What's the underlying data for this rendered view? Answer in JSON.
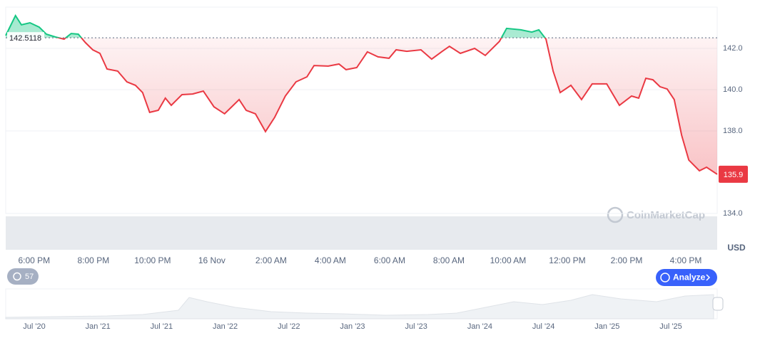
{
  "chart_data": {
    "type": "line",
    "x": [
      17.04,
      17.37,
      17.57,
      17.86,
      18.17,
      18.41,
      18.72,
      19.01,
      19.25,
      19.49,
      19.73,
      19.98,
      20.22,
      20.46,
      20.82,
      21.13,
      21.42,
      21.66,
      21.9,
      22.19,
      22.43,
      22.63,
      22.99,
      23.35,
      23.71,
      24.07,
      24.43,
      24.67,
      24.92,
      25.16,
      25.47,
      25.81,
      26.12,
      26.48,
      26.84,
      27.21,
      27.45,
      27.93,
      28.29,
      28.53,
      28.89,
      29.25,
      29.61,
      29.98,
      30.22,
      30.58,
      31.06,
      31.42,
      31.78,
      32.02,
      32.39,
      32.87,
      33.23,
      33.71,
      33.95,
      34.43,
      34.8,
      35.04,
      35.28,
      35.52,
      35.76,
      36.12,
      36.48,
      36.84,
      37.33,
      37.76,
      38.17,
      38.41,
      38.65,
      38.89,
      39.13,
      39.37,
      39.61,
      39.86,
      40.1,
      40.46,
      40.7,
      41.06
    ],
    "values": [
      142.62,
      143.59,
      143.14,
      143.24,
      143.03,
      142.69,
      142.55,
      142.45,
      142.72,
      142.69,
      142.28,
      141.93,
      141.76,
      141.0,
      140.9,
      140.38,
      140.21,
      139.86,
      138.9,
      139.0,
      139.59,
      139.24,
      139.76,
      139.79,
      139.93,
      139.17,
      138.83,
      139.17,
      139.52,
      139.0,
      138.83,
      137.97,
      138.66,
      139.69,
      140.38,
      140.62,
      141.17,
      141.14,
      141.24,
      140.97,
      141.07,
      141.83,
      141.59,
      141.52,
      141.93,
      141.86,
      141.93,
      141.48,
      141.86,
      142.1,
      141.76,
      142.0,
      141.66,
      142.34,
      142.97,
      142.9,
      142.79,
      142.9,
      142.45,
      140.9,
      139.86,
      140.21,
      139.52,
      140.28,
      140.28,
      139.24,
      139.69,
      139.59,
      140.55,
      140.48,
      140.14,
      140.03,
      139.52,
      137.79,
      136.59,
      136.07,
      136.24,
      135.9
    ],
    "baseline": 142.5118,
    "current_price": 135.9,
    "colors": {
      "up": "#16c784",
      "down": "#ea3943"
    },
    "xlim": [
      17.04,
      41.06
    ],
    "ylim": [
      134,
      144
    ],
    "xticks": [
      {
        "value": 18,
        "label": "6:00 PM"
      },
      {
        "value": 20,
        "label": "8:00 PM"
      },
      {
        "value": 22,
        "label": "10:00 PM"
      },
      {
        "value": 24,
        "label": "16 Nov"
      },
      {
        "value": 26,
        "label": "2:00 AM"
      },
      {
        "value": 28,
        "label": "4:00 AM"
      },
      {
        "value": 30,
        "label": "6:00 AM"
      },
      {
        "value": 32,
        "label": "8:00 AM"
      },
      {
        "value": 34,
        "label": "10:00 AM"
      },
      {
        "value": 36,
        "label": "12:00 PM"
      },
      {
        "value": 38,
        "label": "2:00 PM"
      },
      {
        "value": 40,
        "label": "4:00 PM"
      }
    ],
    "yticks": [
      {
        "value": 134,
        "label": "134.0"
      },
      {
        "value": 138,
        "label": "138.0"
      },
      {
        "value": 140,
        "label": "140.0"
      },
      {
        "value": 142,
        "label": "142.0"
      }
    ],
    "grid": true,
    "currency": "USD",
    "watermark": "CoinMarketCap"
  },
  "controls": {
    "history": "57",
    "analyze": "Analyze"
  },
  "navigator": {
    "labels": [
      "Jul '20",
      "Jan '21",
      "Jul '21",
      "Jan '22",
      "Jul '22",
      "Jan '23",
      "Jul '23",
      "Jan '24",
      "Jul '24",
      "Jan '25",
      "Jul '25"
    ]
  }
}
